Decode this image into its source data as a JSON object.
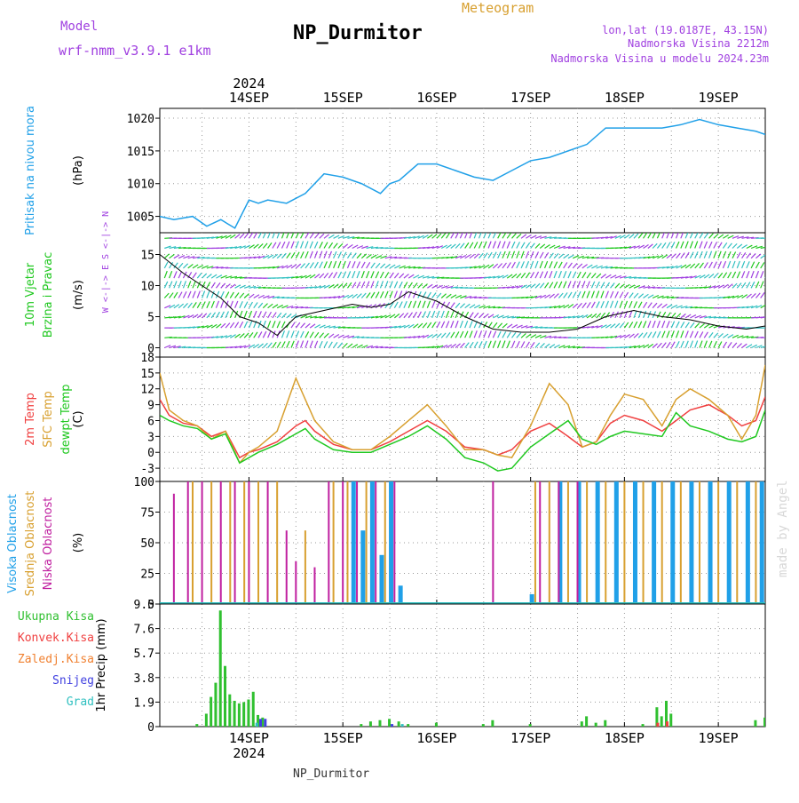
{
  "header": {
    "model_label": "Model",
    "model_name": "wrf-nmm_v3.9.1  e1km",
    "title": "NP_Durmitor",
    "subtitle": "Meteogram",
    "coords": "lon,lat (19.0187E, 43.15N)",
    "elevation": "Nadmorska Visina 2212m",
    "model_elevation": "Nadmorska Visina u modelu 2024.23m"
  },
  "footer": {
    "station": "NP_Durmitor",
    "watermark": "made by Angel"
  },
  "time_axis": {
    "year": "2024",
    "labels": [
      "14SEP",
      "15SEP",
      "16SEP",
      "17SEP",
      "18SEP",
      "19SEP"
    ],
    "day_positions": [
      1,
      2,
      3,
      4,
      5,
      6
    ],
    "range": [
      0.05,
      6.5
    ]
  },
  "colors": {
    "pressure": "#20a0e8",
    "t2m": "#f04040",
    "sfc": "#d8a030",
    "dew": "#20c820",
    "high": "#20a0e8",
    "mid": "#d8a030",
    "low": "#c020a0",
    "precip": "#30c030",
    "conv": "#f04040",
    "frozen": "#f08030",
    "snow": "#4040e0",
    "hail": "#30c0c0",
    "purple": "#a040e0"
  },
  "chart_data": [
    {
      "type": "line",
      "title": "",
      "ylabel": "(hPa)",
      "side_label": "Pritisak na nivou mora",
      "yticks": [
        "1005",
        "1010",
        "1015",
        "1020"
      ],
      "ylim": [
        1002.5,
        1021.5
      ],
      "series": [
        {
          "name": "Pritisak na nivou mora",
          "x": [
            0.05,
            0.2,
            0.4,
            0.55,
            0.7,
            0.85,
            1.0,
            1.1,
            1.2,
            1.4,
            1.6,
            1.8,
            2.0,
            2.2,
            2.4,
            2.5,
            2.6,
            2.8,
            3.0,
            3.2,
            3.4,
            3.6,
            3.8,
            4.0,
            4.2,
            4.4,
            4.6,
            4.8,
            5.0,
            5.2,
            5.4,
            5.6,
            5.8,
            6.0,
            6.2,
            6.4,
            6.5
          ],
          "values": [
            1005,
            1004.5,
            1005,
            1003.5,
            1004.5,
            1003.2,
            1007.5,
            1007,
            1007.5,
            1007,
            1008.5,
            1011.5,
            1011,
            1010,
            1008.5,
            1010,
            1010.5,
            1013,
            1013,
            1012,
            1011,
            1010.5,
            1012,
            1013.5,
            1014,
            1015,
            1016,
            1018.5,
            1018.5,
            1018.5,
            1018.5,
            1019,
            1019.8,
            1019,
            1018.5,
            1018,
            1017.5
          ]
        }
      ]
    },
    {
      "type": "line",
      "title": "",
      "ylabel": "(m/s)",
      "side_label": "10m Vjetar Brzina i Pravac",
      "direction_legend": "W <-|-> E  S <-|-> N",
      "yticks": [
        "0",
        "5",
        "10",
        "15"
      ],
      "ylim": [
        -1.5,
        18.5
      ],
      "series": [
        {
          "name": "10m Vjetar Brzina",
          "x": [
            0.05,
            0.3,
            0.5,
            0.7,
            0.9,
            1.1,
            1.3,
            1.5,
            1.8,
            2.1,
            2.3,
            2.5,
            2.7,
            3.0,
            3.3,
            3.6,
            3.9,
            4.2,
            4.5,
            4.8,
            5.1,
            5.4,
            5.7,
            6.0,
            6.3,
            6.5
          ],
          "values": [
            15,
            12,
            10,
            8,
            5,
            4,
            2,
            5,
            6,
            7,
            6.5,
            7,
            9,
            7.5,
            5,
            3,
            2.5,
            2.5,
            3,
            5,
            6,
            5,
            4.5,
            3.5,
            3,
            3.5
          ]
        }
      ]
    },
    {
      "type": "line",
      "title": "",
      "ylabel": "(C)",
      "side_labels": [
        "2m Temp",
        "SFC Temp",
        "dewpt Temp"
      ],
      "yticks": [
        "-3",
        "0",
        "3",
        "6",
        "9",
        "12",
        "15",
        "18"
      ],
      "ylim": [
        -5.5,
        18
      ],
      "x": [
        0.05,
        0.15,
        0.3,
        0.45,
        0.6,
        0.75,
        0.9,
        1.0,
        1.1,
        1.3,
        1.5,
        1.6,
        1.7,
        1.9,
        2.1,
        2.3,
        2.5,
        2.7,
        2.9,
        3.1,
        3.3,
        3.5,
        3.65,
        3.8,
        4.0,
        4.2,
        4.4,
        4.55,
        4.7,
        4.85,
        5.0,
        5.2,
        5.4,
        5.55,
        5.7,
        5.9,
        6.1,
        6.25,
        6.4,
        6.5
      ],
      "series": [
        {
          "name": "2m Temp",
          "values": [
            10,
            7,
            5.5,
            5,
            3,
            4,
            -1,
            0,
            0.5,
            2,
            5,
            6,
            4,
            1.5,
            0.5,
            0.5,
            2,
            4,
            6,
            4,
            1,
            0.5,
            -0.5,
            0.5,
            4,
            5.5,
            3,
            1,
            2,
            5.5,
            7,
            6,
            4,
            6,
            8,
            9,
            7,
            5,
            6,
            10.5
          ]
        },
        {
          "name": "SFC Temp",
          "values": [
            15,
            8,
            6,
            5,
            2.5,
            4,
            -2,
            0,
            1,
            4,
            14,
            10,
            6,
            2,
            0.5,
            0.5,
            3,
            6,
            9,
            5,
            0.5,
            0.5,
            -0.5,
            -1,
            5,
            13,
            9,
            1,
            2,
            7,
            11,
            10,
            5,
            10,
            12,
            10,
            7,
            2.5,
            7,
            16.5
          ]
        },
        {
          "name": "dewpt Temp",
          "values": [
            7,
            6,
            5,
            4.5,
            2.5,
            3.5,
            -2,
            -1,
            0,
            1.5,
            3.5,
            4.5,
            2.5,
            0.5,
            0,
            0,
            1.5,
            3,
            5,
            2.5,
            -1,
            -2,
            -3.5,
            -3,
            1,
            3.5,
            6,
            2.5,
            1.5,
            3,
            4,
            3.5,
            3,
            7.5,
            5,
            4,
            2.5,
            2,
            3,
            8
          ]
        }
      ]
    },
    {
      "type": "bar",
      "title": "",
      "ylabel": "(%)",
      "side_labels": [
        "Visoka Oblacnost",
        "Srednja Oblacnost",
        "Niska Oblacnost"
      ],
      "yticks": [
        "0",
        "25",
        "50",
        "75",
        "100"
      ],
      "ylim": [
        0,
        100
      ],
      "series": [
        {
          "name": "Visoka Oblacnost",
          "x": [
            2.1,
            2.2,
            2.3,
            2.4,
            2.5,
            2.6,
            4.0,
            4.3,
            4.5,
            4.7,
            4.9,
            5.1,
            5.3,
            5.5,
            5.7,
            5.9,
            6.1,
            6.3,
            6.45
          ],
          "values": [
            100,
            60,
            100,
            40,
            100,
            15,
            8,
            100,
            100,
            100,
            100,
            100,
            100,
            100,
            100,
            100,
            100,
            100,
            100
          ]
        },
        {
          "name": "Srednja Oblacnost",
          "x": [
            0.4,
            0.6,
            0.8,
            0.95,
            1.1,
            1.3,
            1.6,
            1.9,
            2.05,
            2.25,
            2.45,
            4.05,
            4.2,
            4.4,
            4.6,
            4.8,
            5.0,
            5.2,
            5.4,
            5.6,
            5.8,
            6.0,
            6.2,
            6.4
          ],
          "values": [
            100,
            100,
            100,
            100,
            100,
            100,
            60,
            100,
            100,
            100,
            100,
            100,
            100,
            100,
            100,
            100,
            100,
            100,
            100,
            100,
            100,
            100,
            100,
            100
          ]
        },
        {
          "name": "Niska Oblacnost",
          "x": [
            0.2,
            0.35,
            0.5,
            0.7,
            0.85,
            1.0,
            1.2,
            1.4,
            1.5,
            1.7,
            1.85,
            2.0,
            2.15,
            2.35,
            2.55,
            3.6,
            4.1,
            4.3,
            4.5
          ],
          "values": [
            90,
            100,
            100,
            100,
            100,
            100,
            100,
            60,
            35,
            30,
            100,
            100,
            100,
            100,
            100,
            100,
            100,
            100,
            100
          ]
        }
      ]
    },
    {
      "type": "bar",
      "title": "",
      "ylabel": "1hr Precip (mm)",
      "side_labels": [
        "Ukupna Kisa",
        "Konvek.Kisa",
        "Zaledj.Kisa",
        "Snijeg",
        "Grad"
      ],
      "yticks": [
        "0",
        "1.9",
        "3.8",
        "5.7",
        "7.6",
        "9.5"
      ],
      "ylim": [
        0,
        9.5
      ],
      "series": [
        {
          "name": "Ukupna Kisa",
          "x": [
            0.45,
            0.55,
            0.6,
            0.65,
            0.7,
            0.75,
            0.8,
            0.85,
            0.9,
            0.95,
            1.0,
            1.05,
            1.1,
            1.15,
            2.2,
            2.3,
            2.4,
            2.5,
            2.6,
            2.7,
            3.0,
            3.5,
            3.6,
            4.0,
            4.55,
            4.6,
            4.7,
            4.8,
            5.2,
            5.35,
            5.4,
            5.45,
            5.5,
            6.4,
            6.5
          ],
          "values": [
            0.2,
            1,
            2.3,
            3.4,
            9,
            4.7,
            2.5,
            2,
            1.8,
            1.9,
            2.1,
            2.7,
            0.9,
            0.7,
            0.2,
            0.4,
            0.5,
            0.6,
            0.4,
            0.2,
            0.3,
            0.2,
            0.5,
            0.2,
            0.4,
            0.8,
            0.3,
            0.5,
            0.2,
            1.5,
            0.8,
            2,
            1,
            0.5,
            0.7
          ]
        },
        {
          "name": "Konvek.Kisa",
          "x": [
            5.35,
            5.45
          ],
          "values": [
            0.3,
            0.4
          ]
        },
        {
          "name": "Zaledj.Kisa",
          "x": [
            6.5
          ],
          "values": [
            0.2
          ]
        },
        {
          "name": "Snijeg",
          "x": [
            1.1,
            1.15,
            2.5
          ],
          "values": [
            0.6,
            0.6,
            0.2
          ]
        },
        {
          "name": "Grad",
          "x": [
            1.05,
            2.6
          ],
          "values": [
            0.3,
            0.2
          ]
        }
      ]
    }
  ]
}
